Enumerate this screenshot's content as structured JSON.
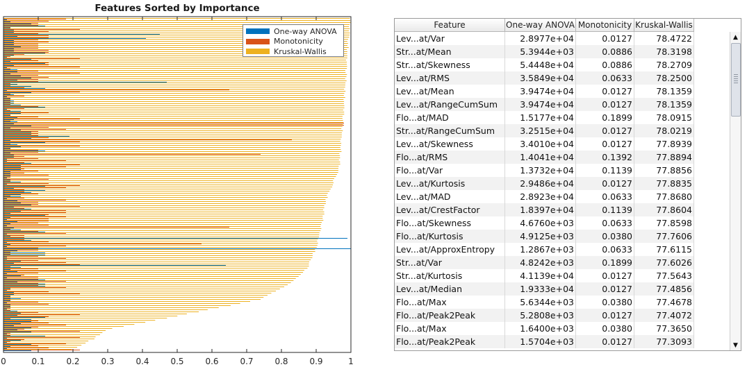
{
  "chart_data": {
    "type": "bar",
    "orientation": "horizontal",
    "title": "Features Sorted by Importance",
    "xlim": [
      0,
      1
    ],
    "x_ticks": [
      "0",
      "0.1",
      "0.2",
      "0.3",
      "0.4",
      "0.5",
      "0.6",
      "0.7",
      "0.8",
      "0.9",
      "1"
    ],
    "legend_position": "top-right",
    "series": [
      {
        "name": "One-way ANOVA",
        "color": "#0072BD"
      },
      {
        "name": "Monotonicity",
        "color": "#D95319"
      },
      {
        "name": "Kruskal-Wallis",
        "color": "#EDB120"
      }
    ],
    "kruskal_wallis_profile": [
      [
        0,
        1.0
      ],
      [
        0.15,
        0.99
      ],
      [
        0.3,
        0.98
      ],
      [
        0.45,
        0.97
      ],
      [
        0.5,
        0.95
      ],
      [
        0.55,
        0.93
      ],
      [
        0.62,
        0.92
      ],
      [
        0.7,
        0.9
      ],
      [
        0.75,
        0.88
      ],
      [
        0.8,
        0.83
      ],
      [
        0.85,
        0.74
      ],
      [
        0.9,
        0.5
      ],
      [
        0.94,
        0.3
      ],
      [
        0.97,
        0.26
      ],
      [
        1,
        0.2
      ]
    ],
    "notable_values": {
      "monotonicity_peaks": [
        0.65,
        0.98,
        0.83,
        0.74,
        0.65,
        0.57
      ],
      "anova_peaks": [
        0.45,
        0.41,
        0.47,
        0.19,
        0.99,
        1.0,
        0.64
      ]
    }
  },
  "table": {
    "columns": [
      "Feature",
      "One-way ANOVA",
      "Monotonicity",
      "Kruskal-Wallis"
    ],
    "rows": [
      [
        "Lev...at/Var",
        "2.8977e+04",
        "0.0127",
        "78.4722"
      ],
      [
        "Str...at/Mean",
        "5.3944e+03",
        "0.0886",
        "78.3198"
      ],
      [
        "Str...at/Skewness",
        "5.4448e+04",
        "0.0886",
        "78.2709"
      ],
      [
        "Lev...at/RMS",
        "3.5849e+04",
        "0.0633",
        "78.2500"
      ],
      [
        "Lev...at/Mean",
        "3.9474e+04",
        "0.0127",
        "78.1359"
      ],
      [
        "Lev...at/RangeCumSum",
        "3.9474e+04",
        "0.0127",
        "78.1359"
      ],
      [
        "Flo...at/MAD",
        "1.5177e+04",
        "0.1899",
        "78.0915"
      ],
      [
        "Str...at/RangeCumSum",
        "3.2515e+04",
        "0.0127",
        "78.0219"
      ],
      [
        "Lev...at/Skewness",
        "3.4010e+04",
        "0.0127",
        "77.8939"
      ],
      [
        "Flo...at/RMS",
        "1.4041e+04",
        "0.1392",
        "77.8894"
      ],
      [
        "Flo...at/Var",
        "1.3732e+04",
        "0.1139",
        "77.8856"
      ],
      [
        "Lev...at/Kurtosis",
        "2.9486e+04",
        "0.0127",
        "77.8835"
      ],
      [
        "Lev...at/MAD",
        "2.8923e+04",
        "0.0633",
        "77.8680"
      ],
      [
        "Lev...at/CrestFactor",
        "1.8397e+04",
        "0.1139",
        "77.8604"
      ],
      [
        "Flo...at/Skewness",
        "4.6760e+03",
        "0.0633",
        "77.8598"
      ],
      [
        "Flo...at/Kurtosis",
        "4.9125e+03",
        "0.0380",
        "77.7606"
      ],
      [
        "Lev...at/ApproxEntropy",
        "1.2867e+03",
        "0.0633",
        "77.6115"
      ],
      [
        "Str...at/Var",
        "4.8242e+03",
        "0.1899",
        "77.6026"
      ],
      [
        "Str...at/Kurtosis",
        "4.1139e+04",
        "0.0127",
        "77.5643"
      ],
      [
        "Lev...at/Median",
        "1.9333e+04",
        "0.0127",
        "77.4856"
      ],
      [
        "Flo...at/Max",
        "5.6344e+03",
        "0.0380",
        "77.4678"
      ],
      [
        "Flo...at/Peak2Peak",
        "5.2808e+03",
        "0.0127",
        "77.4072"
      ],
      [
        "Flo...at/Max",
        "1.6400e+03",
        "0.0380",
        "77.3650"
      ],
      [
        "Flo...at/Peak2Peak",
        "1.5704e+03",
        "0.0127",
        "77.3093"
      ]
    ]
  },
  "scrollbar": {
    "up_icon": "triangle-up-icon",
    "down_icon": "triangle-down-icon"
  }
}
